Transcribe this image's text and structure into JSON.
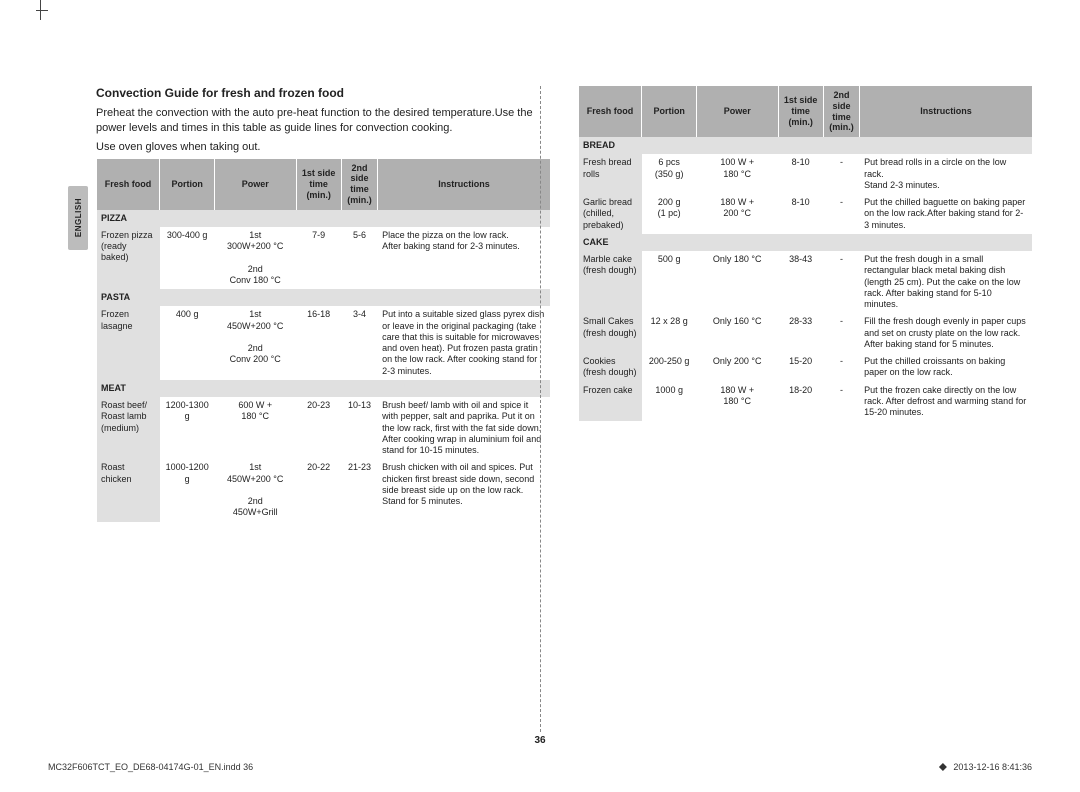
{
  "language_tab": "ENGLISH",
  "title": "Convection Guide for fresh and frozen food",
  "intro1": "Preheat the convection with the auto pre-heat function to the desired temperature.Use the power levels and times in this table as guide lines for convection cooking.",
  "intro2": "Use oven gloves when taking out.",
  "headers": {
    "food": "Fresh food",
    "portion": "Portion",
    "power": "Power",
    "t1": "1st side time (min.)",
    "t2": "2nd side time (min.)",
    "instr": "Instructions"
  },
  "sections_left": [
    {
      "name": "PIZZA",
      "rows": [
        {
          "food": "Frozen pizza (ready baked)",
          "portion": "300-400 g",
          "power": "1st\n300W+200 °C\n\n2nd\nConv 180 °C",
          "t1": "7-9",
          "t2": "5-6",
          "instr": "Place the pizza on the low rack.\nAfter baking stand for 2-3 minutes."
        }
      ]
    },
    {
      "name": "PASTA",
      "rows": [
        {
          "food": "Frozen lasagne",
          "portion": "400 g",
          "power": "1st\n450W+200 °C\n\n2nd\nConv 200 °C",
          "t1": "16-18",
          "t2": "3-4",
          "instr": "Put into a suitable sized glass pyrex dish or leave in the original packaging (take care that this is suitable for microwaves and oven heat). Put frozen pasta gratin on the low rack. After cooking stand for 2-3 minutes."
        }
      ]
    },
    {
      "name": "MEAT",
      "rows": [
        {
          "food": "Roast beef/ Roast lamb (medium)",
          "portion": "1200-1300 g",
          "power": "600 W +\n180 °C",
          "t1": "20-23",
          "t2": "10-13",
          "instr": "Brush beef/ lamb with oil and spice it with pepper, salt and paprika. Put it on the low rack, first with the fat side down. After cooking wrap in aluminium foil and stand for 10-15 minutes."
        },
        {
          "food": "Roast chicken",
          "portion": "1000-1200 g",
          "power": "1st\n450W+200 °C\n\n2nd\n450W+Grill",
          "t1": "20-22",
          "t2": "21-23",
          "instr": "Brush chicken with oil and spices. Put chicken first breast side down, second side breast side up on the low rack. Stand for 5 minutes."
        }
      ]
    }
  ],
  "sections_right": [
    {
      "name": "BREAD",
      "rows": [
        {
          "food": "Fresh bread rolls",
          "portion": "6 pcs\n(350 g)",
          "power": "100 W +\n180 °C",
          "t1": "8-10",
          "t2": "-",
          "instr": "Put bread rolls in a circle on the low rack.\nStand 2-3 minutes."
        },
        {
          "food": "Garlic bread (chilled, prebaked)",
          "portion": "200 g\n(1 pc)",
          "power": "180 W +\n200 °C",
          "t1": "8-10",
          "t2": "-",
          "instr": "Put the chilled baguette on baking paper on the low rack.After baking stand for 2-3 minutes."
        }
      ]
    },
    {
      "name": "CAKE",
      "rows": [
        {
          "food": "Marble cake (fresh dough)",
          "portion": "500 g",
          "power": "Only 180 °C",
          "t1": "38-43",
          "t2": "-",
          "instr": "Put the fresh dough in a small rectangular black metal baking dish (length 25 cm). Put the cake on the low rack. After baking stand for 5-10 minutes."
        },
        {
          "food": "Small Cakes (fresh dough)",
          "portion": "12 x 28 g",
          "power": "Only 160 °C",
          "t1": "28-33",
          "t2": "-",
          "instr": "Fill the fresh dough evenly in paper cups and set on crusty plate on the low rack.\nAfter baking stand for 5 minutes."
        },
        {
          "food": "Cookies (fresh dough)",
          "portion": "200-250 g",
          "power": "Only 200 °C",
          "t1": "15-20",
          "t2": "-",
          "instr": "Put the chilled croissants on baking paper on the low rack."
        },
        {
          "food": "Frozen cake",
          "portion": "1000 g",
          "power": "180 W +\n180 °C",
          "t1": "18-20",
          "t2": "-",
          "instr": "Put the frozen cake directly on the low rack. After defrost and warming stand for 15-20 minutes."
        }
      ]
    }
  ],
  "page_number": "36",
  "footer_file": "MC32F606TCT_EO_DE68-04174G-01_EN.indd   36",
  "footer_time": "2013-12-16      8:41:36"
}
